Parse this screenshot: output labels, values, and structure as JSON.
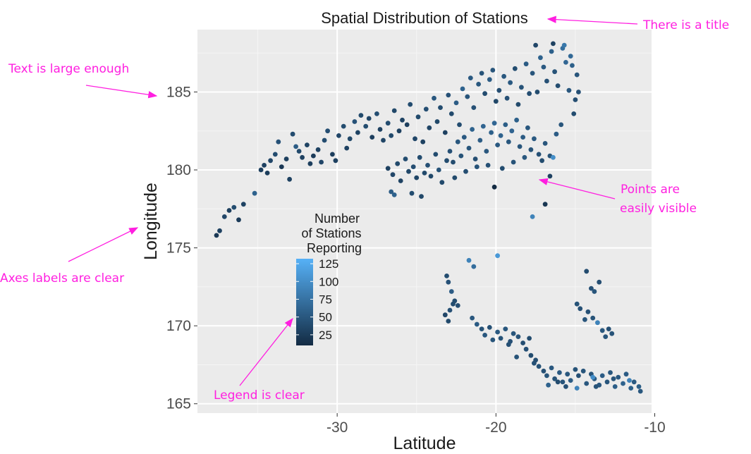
{
  "chart_data": {
    "type": "scatter",
    "title": "Spatial Distribution of Stations",
    "xlabel": "Latitude",
    "ylabel": "Longitude",
    "xlim": [
      -38.8,
      -10.2
    ],
    "ylim": [
      164.4,
      189.0
    ],
    "xticks": [
      -30,
      -20,
      -10
    ],
    "yticks": [
      165,
      170,
      175,
      180,
      185
    ],
    "grid": true,
    "legend": {
      "title_lines": [
        "Number",
        "of Stations",
        "Reporting"
      ],
      "labels": [
        125,
        100,
        75,
        50,
        25
      ],
      "range": [
        10,
        132
      ],
      "placement": "inside-left",
      "colors": [
        "#132b43",
        "#56b1f7"
      ]
    },
    "points": [
      [
        -37.6,
        175.8,
        22
      ],
      [
        -37.4,
        176.1,
        30
      ],
      [
        -37.1,
        177.0,
        35
      ],
      [
        -36.8,
        177.4,
        28
      ],
      [
        -36.5,
        177.6,
        40
      ],
      [
        -36.2,
        176.8,
        25
      ],
      [
        -35.9,
        177.8,
        32
      ],
      [
        -35.2,
        178.5,
        60
      ],
      [
        -34.8,
        180.0,
        28
      ],
      [
        -34.6,
        180.3,
        30
      ],
      [
        -34.4,
        179.8,
        26
      ],
      [
        -34.2,
        180.6,
        35
      ],
      [
        -33.9,
        181.0,
        40
      ],
      [
        -33.7,
        181.8,
        45
      ],
      [
        -33.5,
        180.2,
        22
      ],
      [
        -33.2,
        180.7,
        28
      ],
      [
        -33.0,
        179.4,
        30
      ],
      [
        -32.8,
        182.3,
        40
      ],
      [
        -32.6,
        181.5,
        55
      ],
      [
        -32.4,
        181.2,
        38
      ],
      [
        -32.2,
        180.8,
        30
      ],
      [
        -31.9,
        181.6,
        32
      ],
      [
        -31.7,
        180.4,
        28
      ],
      [
        -31.5,
        180.9,
        25
      ],
      [
        -31.2,
        181.3,
        30
      ],
      [
        -31.0,
        180.5,
        35
      ],
      [
        -30.8,
        181.9,
        40
      ],
      [
        -30.6,
        182.5,
        42
      ],
      [
        -30.3,
        181.0,
        28
      ],
      [
        -30.1,
        180.6,
        30
      ],
      [
        -29.9,
        182.2,
        35
      ],
      [
        -29.6,
        182.8,
        40
      ],
      [
        -29.4,
        181.4,
        30
      ],
      [
        -29.2,
        182.0,
        36
      ],
      [
        -28.9,
        183.1,
        45
      ],
      [
        -28.7,
        182.4,
        32
      ],
      [
        -28.5,
        183.5,
        38
      ],
      [
        -28.2,
        182.8,
        40
      ],
      [
        -28.0,
        183.3,
        35
      ],
      [
        -27.8,
        182.1,
        28
      ],
      [
        -27.5,
        183.6,
        42
      ],
      [
        -27.3,
        182.6,
        30
      ],
      [
        -27.1,
        181.9,
        34
      ],
      [
        -26.8,
        183.0,
        40
      ],
      [
        -26.6,
        182.2,
        38
      ],
      [
        -26.4,
        183.8,
        36
      ],
      [
        -26.1,
        182.5,
        30
      ],
      [
        -25.9,
        183.2,
        32
      ],
      [
        -25.6,
        182.9,
        28
      ],
      [
        -25.4,
        184.2,
        40
      ],
      [
        -25.1,
        182.0,
        35
      ],
      [
        -24.9,
        183.4,
        38
      ],
      [
        -24.6,
        181.8,
        30
      ],
      [
        -24.4,
        183.9,
        42
      ],
      [
        -24.2,
        182.7,
        34
      ],
      [
        -23.9,
        184.6,
        50
      ],
      [
        -23.7,
        183.1,
        36
      ],
      [
        -23.5,
        184.0,
        40
      ],
      [
        -23.2,
        182.4,
        30
      ],
      [
        -23.0,
        184.8,
        45
      ],
      [
        -22.8,
        183.6,
        38
      ],
      [
        -22.5,
        184.3,
        55
      ],
      [
        -22.3,
        182.9,
        40
      ],
      [
        -22.1,
        185.2,
        60
      ],
      [
        -21.8,
        184.7,
        48
      ],
      [
        -21.6,
        185.9,
        52
      ],
      [
        -21.4,
        184.0,
        44
      ],
      [
        -21.1,
        185.5,
        50
      ],
      [
        -20.9,
        186.2,
        46
      ],
      [
        -20.7,
        184.9,
        40
      ],
      [
        -20.4,
        185.8,
        55
      ],
      [
        -20.2,
        186.4,
        48
      ],
      [
        -20.0,
        184.4,
        36
      ],
      [
        -19.8,
        185.1,
        42
      ],
      [
        -19.5,
        186.0,
        50
      ],
      [
        -19.3,
        184.6,
        44
      ],
      [
        -19.1,
        185.6,
        52
      ],
      [
        -18.8,
        186.5,
        40
      ],
      [
        -18.6,
        184.2,
        38
      ],
      [
        -18.4,
        185.3,
        46
      ],
      [
        -18.1,
        186.8,
        54
      ],
      [
        -17.9,
        184.9,
        42
      ],
      [
        -17.7,
        186.2,
        48
      ],
      [
        -17.4,
        185.0,
        40
      ],
      [
        -17.2,
        187.2,
        60
      ],
      [
        -17.0,
        186.6,
        52
      ],
      [
        -16.8,
        185.7,
        44
      ],
      [
        -16.5,
        187.6,
        58
      ],
      [
        -16.3,
        186.3,
        46
      ],
      [
        -16.1,
        185.4,
        40
      ],
      [
        -15.8,
        187.8,
        70
      ],
      [
        -15.6,
        186.9,
        64
      ],
      [
        -15.4,
        185.1,
        50
      ],
      [
        -15.2,
        186.7,
        58
      ],
      [
        -15.0,
        184.5,
        42
      ],
      [
        -14.9,
        186.1,
        48
      ],
      [
        -15.7,
        188.0,
        80
      ],
      [
        -16.4,
        188.1,
        30
      ],
      [
        -17.5,
        188.0,
        35
      ],
      [
        -15.3,
        187.3,
        66
      ],
      [
        -15.1,
        183.6,
        40
      ],
      [
        -14.8,
        185.0,
        44
      ],
      [
        -26.8,
        180.1,
        30
      ],
      [
        -26.5,
        179.7,
        35
      ],
      [
        -26.2,
        180.4,
        38
      ],
      [
        -26.0,
        179.3,
        32
      ],
      [
        -25.7,
        180.7,
        40
      ],
      [
        -25.5,
        179.9,
        36
      ],
      [
        -25.2,
        180.2,
        42
      ],
      [
        -25.0,
        179.5,
        34
      ],
      [
        -24.8,
        180.8,
        40
      ],
      [
        -24.5,
        179.8,
        38
      ],
      [
        -24.3,
        180.3,
        44
      ],
      [
        -24.1,
        179.6,
        36
      ],
      [
        -23.8,
        181.0,
        40
      ],
      [
        -23.6,
        180.0,
        46
      ],
      [
        -26.4,
        178.4,
        60
      ],
      [
        -26.6,
        178.6,
        55
      ],
      [
        -25.3,
        178.5,
        40
      ],
      [
        -24.7,
        178.3,
        36
      ],
      [
        -23.4,
        179.2,
        38
      ],
      [
        -23.1,
        180.6,
        40
      ],
      [
        -22.9,
        181.2,
        44
      ],
      [
        -22.7,
        180.5,
        40
      ],
      [
        -22.4,
        181.8,
        50
      ],
      [
        -22.2,
        180.9,
        46
      ],
      [
        -22.0,
        182.1,
        52
      ],
      [
        -21.7,
        181.4,
        48
      ],
      [
        -21.5,
        182.6,
        60
      ],
      [
        -21.3,
        180.7,
        42
      ],
      [
        -21.0,
        181.9,
        55
      ],
      [
        -20.8,
        182.8,
        62
      ],
      [
        -20.6,
        181.2,
        50
      ],
      [
        -20.3,
        182.4,
        58
      ],
      [
        -20.1,
        183.0,
        64
      ],
      [
        -19.9,
        181.6,
        52
      ],
      [
        -19.7,
        182.2,
        60
      ],
      [
        -19.4,
        182.9,
        56
      ],
      [
        -19.2,
        181.8,
        50
      ],
      [
        -19.0,
        182.5,
        62
      ],
      [
        -18.7,
        183.2,
        58
      ],
      [
        -18.5,
        181.5,
        48
      ],
      [
        -18.3,
        182.1,
        54
      ],
      [
        -18.0,
        182.7,
        50
      ],
      [
        -17.8,
        181.3,
        46
      ],
      [
        -17.6,
        182.0,
        52
      ],
      [
        -17.3,
        181.0,
        44
      ],
      [
        -17.1,
        180.6,
        40
      ],
      [
        -16.9,
        181.7,
        48
      ],
      [
        -16.6,
        180.9,
        46
      ],
      [
        -20.5,
        180.3,
        44
      ],
      [
        -19.6,
        180.1,
        40
      ],
      [
        -18.9,
        180.5,
        46
      ],
      [
        -18.2,
        180.8,
        50
      ],
      [
        -22.6,
        179.5,
        38
      ],
      [
        -21.9,
        179.9,
        42
      ],
      [
        -21.2,
        180.2,
        46
      ],
      [
        -16.4,
        180.8,
        100
      ],
      [
        -16.2,
        182.3,
        55
      ],
      [
        -15.9,
        182.9,
        48
      ],
      [
        -20.1,
        178.9,
        10
      ],
      [
        -16.6,
        179.6,
        30
      ],
      [
        -16.9,
        177.8,
        20
      ],
      [
        -17.7,
        177.0,
        90
      ],
      [
        -23.1,
        173.2,
        40
      ],
      [
        -23.0,
        172.8,
        45
      ],
      [
        -22.8,
        172.2,
        55
      ],
      [
        -22.6,
        171.6,
        40
      ],
      [
        -22.4,
        171.3,
        42
      ],
      [
        -23.2,
        170.7,
        35
      ],
      [
        -23.0,
        170.3,
        38
      ],
      [
        -22.9,
        171.0,
        44
      ],
      [
        -22.7,
        171.4,
        40
      ],
      [
        -21.7,
        174.2,
        90
      ],
      [
        -21.4,
        173.8,
        70
      ],
      [
        -19.9,
        174.5,
        110
      ],
      [
        -21.5,
        170.5,
        50
      ],
      [
        -21.2,
        170.1,
        54
      ],
      [
        -20.9,
        169.8,
        46
      ],
      [
        -20.7,
        169.4,
        50
      ],
      [
        -20.4,
        169.9,
        44
      ],
      [
        -20.2,
        169.1,
        48
      ],
      [
        -19.9,
        169.6,
        52
      ],
      [
        -19.7,
        169.2,
        46
      ],
      [
        -19.4,
        169.8,
        50
      ],
      [
        -19.1,
        169.0,
        44
      ],
      [
        -18.9,
        169.5,
        48
      ],
      [
        -18.6,
        169.3,
        46
      ],
      [
        -18.3,
        168.9,
        42
      ],
      [
        -18.1,
        168.5,
        44
      ],
      [
        -17.8,
        168.1,
        40
      ],
      [
        -17.5,
        167.8,
        42
      ],
      [
        -17.3,
        167.4,
        46
      ],
      [
        -17.0,
        167.1,
        44
      ],
      [
        -16.8,
        166.8,
        48
      ],
      [
        -16.5,
        167.3,
        50
      ],
      [
        -16.3,
        166.6,
        46
      ],
      [
        -16.0,
        167.0,
        52
      ],
      [
        -15.8,
        166.4,
        48
      ],
      [
        -15.5,
        166.9,
        50
      ],
      [
        -15.3,
        166.5,
        54
      ],
      [
        -15.0,
        167.2,
        46
      ],
      [
        -14.8,
        166.8,
        44
      ],
      [
        -14.5,
        167.1,
        48
      ],
      [
        -14.3,
        166.3,
        50
      ],
      [
        -14.0,
        166.9,
        46
      ],
      [
        -13.8,
        166.6,
        52
      ],
      [
        -13.5,
        166.2,
        50
      ],
      [
        -13.3,
        166.8,
        54
      ],
      [
        -13.0,
        166.4,
        48
      ],
      [
        -12.8,
        167.0,
        50
      ],
      [
        -12.5,
        166.1,
        56
      ],
      [
        -12.3,
        166.7,
        52
      ],
      [
        -12.0,
        166.3,
        60
      ],
      [
        -11.8,
        166.9,
        54
      ],
      [
        -11.5,
        166.0,
        58
      ],
      [
        -11.3,
        166.4,
        52
      ],
      [
        -11.0,
        166.1,
        56
      ],
      [
        -10.9,
        165.8,
        50
      ],
      [
        -11.6,
        166.5,
        90
      ],
      [
        -12.6,
        166.6,
        48
      ],
      [
        -13.7,
        166.1,
        46
      ],
      [
        -14.9,
        166.0,
        90
      ],
      [
        -16.1,
        166.4,
        40
      ],
      [
        -17.6,
        167.6,
        44
      ],
      [
        -16.7,
        166.2,
        60
      ],
      [
        -13.9,
        166.7,
        100
      ],
      [
        -14.3,
        173.5,
        40
      ],
      [
        -14.0,
        172.4,
        44
      ],
      [
        -13.8,
        172.2,
        48
      ],
      [
        -13.5,
        172.8,
        42
      ],
      [
        -14.9,
        171.4,
        46
      ],
      [
        -14.7,
        171.1,
        44
      ],
      [
        -14.4,
        170.4,
        48
      ],
      [
        -14.2,
        170.9,
        44
      ],
      [
        -13.9,
        170.5,
        46
      ],
      [
        -13.6,
        170.2,
        90
      ],
      [
        -13.3,
        169.7,
        50
      ],
      [
        -13.1,
        169.3,
        48
      ],
      [
        -12.9,
        169.8,
        44
      ],
      [
        -12.7,
        169.5,
        46
      ],
      [
        -19.2,
        168.8,
        44
      ],
      [
        -18.7,
        168.0,
        46
      ],
      [
        -17.9,
        169.2,
        40
      ],
      [
        -15.6,
        166.1,
        44
      ]
    ]
  },
  "annotations": {
    "title_note": "There is a title",
    "text_note": "Text is large enough",
    "points_note_line1": "Points are",
    "points_note_line2": "easily visible",
    "axes_note": "Axes labels are clear",
    "legend_note": "Legend is clear",
    "color": "#ff1fe0"
  }
}
